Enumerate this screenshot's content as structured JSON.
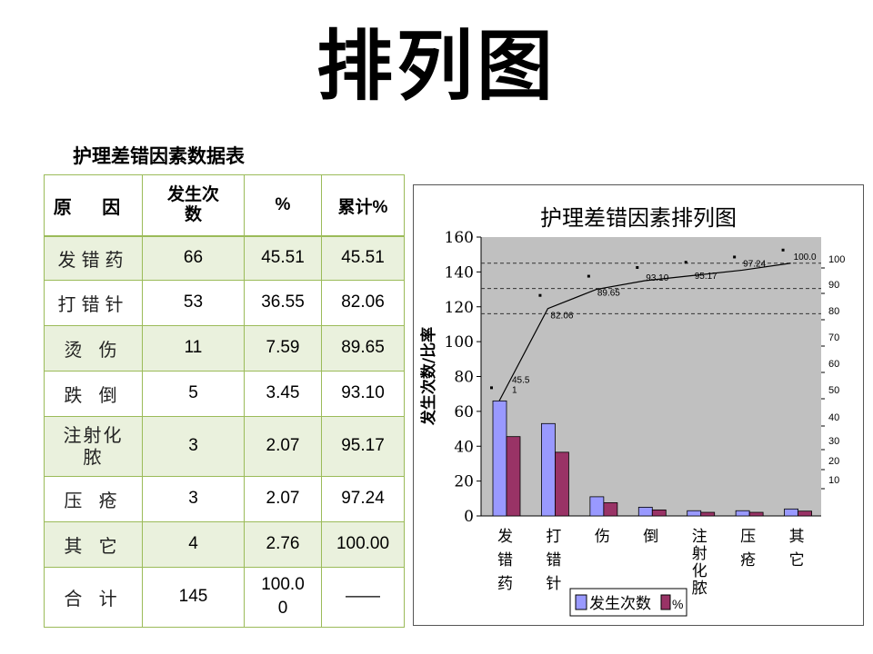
{
  "page": {
    "title": "排列图"
  },
  "table": {
    "title": "护理差错因素数据表",
    "headers": [
      "原 因",
      "发生次数",
      "%",
      "累计%"
    ],
    "rows": [
      [
        "发错药",
        "66",
        "45.51",
        "45.51"
      ],
      [
        "打错针",
        "53",
        "36.55",
        "82.06"
      ],
      [
        "烫 伤",
        "11",
        "7.59",
        "89.65"
      ],
      [
        "跌 倒",
        "5",
        "3.45",
        "93.10"
      ],
      [
        "注射化脓",
        "3",
        "2.07",
        "95.17"
      ],
      [
        "压 疮",
        "3",
        "2.07",
        "97.24"
      ],
      [
        "其 它",
        "4",
        "2.76",
        "100.00"
      ],
      [
        "合 计",
        "145",
        "100.00",
        "——"
      ]
    ]
  },
  "chart_data": {
    "type": "bar",
    "title": "护理差错因素排列图",
    "ylabel": "发生次数/比率",
    "categories": [
      "发错药",
      "打错针",
      "伤",
      "倒",
      "注射化脓",
      "压疮",
      "其它"
    ],
    "category_labels": [
      "发 错 药",
      "打 错 针",
      "伤",
      "倒",
      "注射化脓",
      "压 疮",
      "其 它"
    ],
    "series": [
      {
        "name": "发生次数",
        "values": [
          66,
          53,
          11,
          5,
          3,
          3,
          4
        ],
        "color": "#9999ff"
      },
      {
        "name": "%",
        "values": [
          45.51,
          36.55,
          7.59,
          3.45,
          2.07,
          2.07,
          2.76
        ],
        "color": "#993366"
      }
    ],
    "cumulative": {
      "values": [
        45.51,
        82.06,
        89.65,
        93.1,
        95.17,
        97.24,
        100.0
      ],
      "labels": [
        "45.5\n1",
        "82.06",
        "89.65",
        "93.10",
        "95.17",
        "97.24",
        "100.0"
      ]
    },
    "ylim": [
      0,
      160
    ],
    "yticks": [
      0,
      20,
      40,
      60,
      80,
      100,
      120,
      140,
      160
    ],
    "y2ticks": [
      "10",
      "20",
      "30",
      "40",
      "50",
      "60",
      "70",
      "80",
      "90",
      "100"
    ],
    "plot_background": "#c0c0c0",
    "legend_position": "bottom-center"
  }
}
